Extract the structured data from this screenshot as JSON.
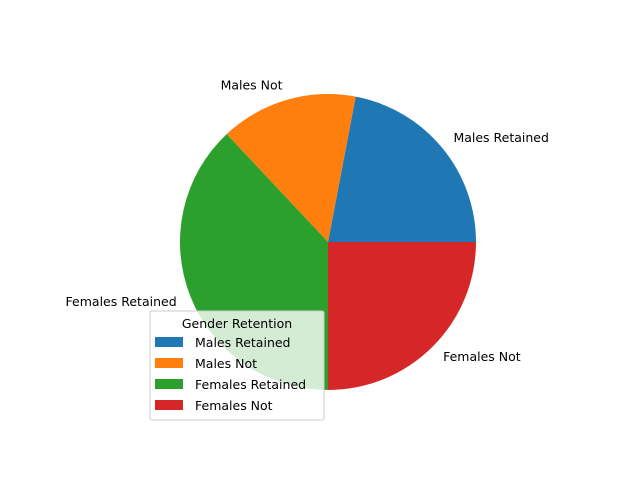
{
  "chart_data": {
    "type": "pie",
    "title": "",
    "labels": [
      "Males Retained",
      "Males Not",
      "Females Retained",
      "Females Not"
    ],
    "values": [
      22,
      15,
      38,
      25
    ],
    "colors": [
      "#1f77b4",
      "#ff7f0e",
      "#2ca02c",
      "#d62728"
    ],
    "start_angle_deg": 0,
    "direction": "counterclockwise",
    "legend": {
      "title": "Gender Retention",
      "entries": [
        "Males Retained",
        "Males Not",
        "Females Retained",
        "Females Not"
      ],
      "placement": "lower-center-left"
    }
  }
}
